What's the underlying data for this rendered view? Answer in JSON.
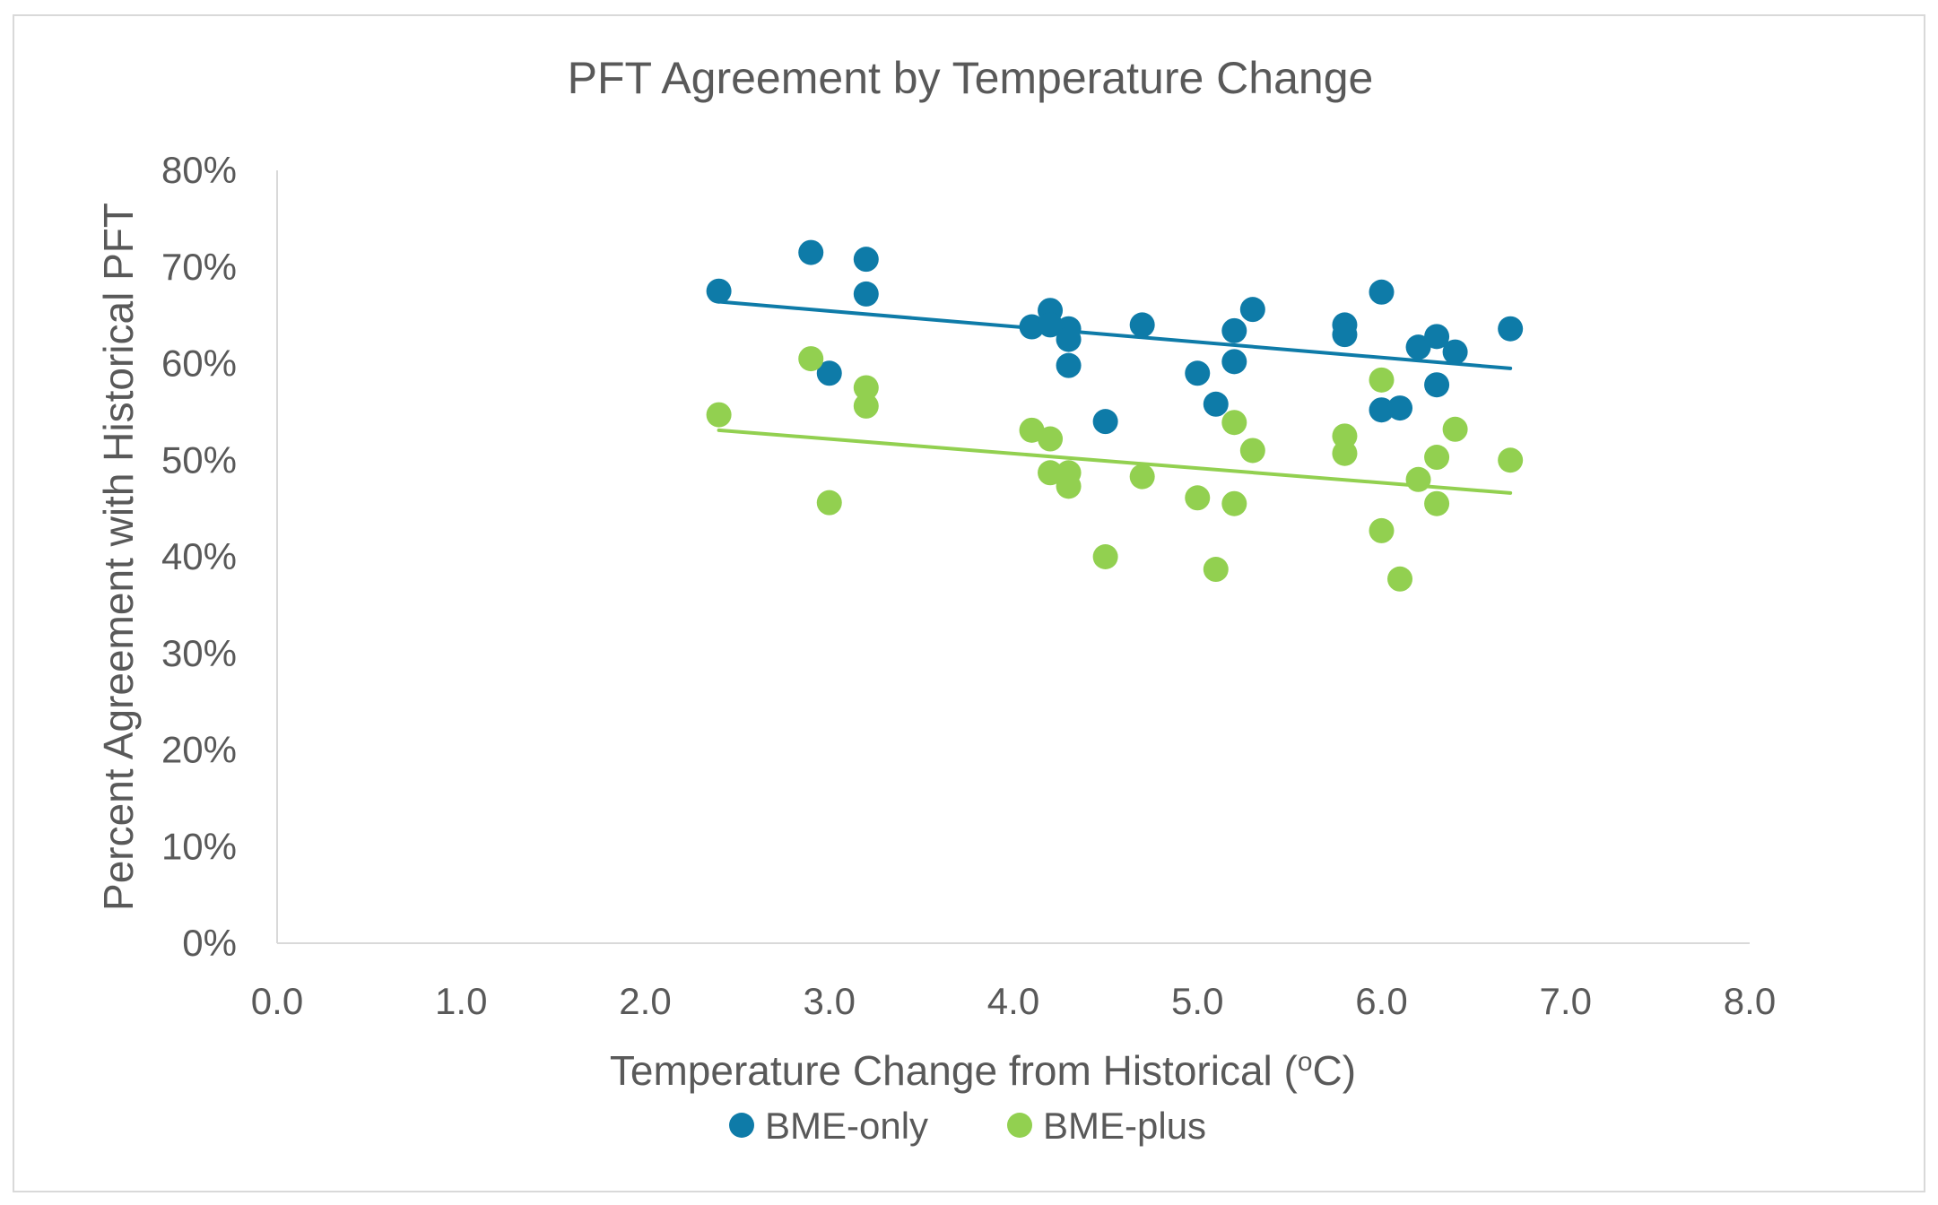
{
  "chart_data": {
    "type": "scatter",
    "title": "PFT Agreement by Temperature Change",
    "xlabel": "Temperature Change from Historical (",
    "xlabel_superscript": "o",
    "xlabel_suffix": "C)",
    "ylabel": "Percent Agreement with Historical PFT",
    "xlim": [
      0,
      8
    ],
    "ylim": [
      0,
      80
    ],
    "x_ticks": [
      0,
      1,
      2,
      3,
      4,
      5,
      6,
      7,
      8
    ],
    "x_tick_labels": [
      "0.0",
      "1.0",
      "2.0",
      "3.0",
      "4.0",
      "5.0",
      "6.0",
      "7.0",
      "8.0"
    ],
    "y_ticks": [
      0,
      10,
      20,
      30,
      40,
      50,
      60,
      70,
      80
    ],
    "y_tick_labels": [
      "0%",
      "10%",
      "20%",
      "30%",
      "40%",
      "50%",
      "60%",
      "70%",
      "80%"
    ],
    "grid": false,
    "legend_position": "bottom",
    "series": [
      {
        "name": "BME-only",
        "color": "#0e7ba8",
        "points": [
          [
            2.4,
            67.5
          ],
          [
            2.9,
            71.5
          ],
          [
            3.0,
            59.0
          ],
          [
            3.2,
            70.8
          ],
          [
            3.2,
            67.2
          ],
          [
            4.1,
            63.8
          ],
          [
            4.2,
            65.5
          ],
          [
            4.2,
            64.0
          ],
          [
            4.3,
            63.6
          ],
          [
            4.3,
            62.5
          ],
          [
            4.3,
            59.8
          ],
          [
            4.5,
            54.0
          ],
          [
            4.7,
            64.0
          ],
          [
            5.0,
            59.0
          ],
          [
            5.1,
            55.8
          ],
          [
            5.2,
            63.4
          ],
          [
            5.2,
            60.2
          ],
          [
            5.3,
            65.6
          ],
          [
            5.8,
            64.0
          ],
          [
            5.8,
            63.0
          ],
          [
            6.0,
            67.4
          ],
          [
            6.0,
            55.2
          ],
          [
            6.1,
            55.4
          ],
          [
            6.2,
            61.7
          ],
          [
            6.3,
            62.8
          ],
          [
            6.3,
            57.8
          ],
          [
            6.4,
            61.2
          ],
          [
            6.7,
            63.6
          ]
        ],
        "trendline": {
          "x0": 2.4,
          "y0": 66.4,
          "x1": 6.7,
          "y1": 59.5
        }
      },
      {
        "name": "BME-plus",
        "color": "#92d050",
        "points": [
          [
            2.4,
            54.7
          ],
          [
            2.9,
            60.5
          ],
          [
            3.0,
            45.6
          ],
          [
            3.2,
            57.5
          ],
          [
            3.2,
            55.6
          ],
          [
            4.1,
            53.1
          ],
          [
            4.2,
            52.2
          ],
          [
            4.2,
            48.7
          ],
          [
            4.3,
            48.7
          ],
          [
            4.3,
            47.3
          ],
          [
            4.5,
            40.0
          ],
          [
            4.7,
            48.3
          ],
          [
            5.0,
            46.1
          ],
          [
            5.1,
            38.7
          ],
          [
            5.2,
            53.9
          ],
          [
            5.2,
            45.5
          ],
          [
            5.3,
            51.0
          ],
          [
            5.8,
            52.5
          ],
          [
            5.8,
            50.7
          ],
          [
            6.0,
            58.3
          ],
          [
            6.0,
            42.7
          ],
          [
            6.1,
            37.7
          ],
          [
            6.2,
            48.0
          ],
          [
            6.3,
            50.3
          ],
          [
            6.3,
            45.5
          ],
          [
            6.4,
            53.2
          ],
          [
            6.7,
            50.0
          ]
        ],
        "trendline": {
          "x0": 2.4,
          "y0": 53.1,
          "x1": 6.7,
          "y1": 46.6
        }
      }
    ]
  }
}
